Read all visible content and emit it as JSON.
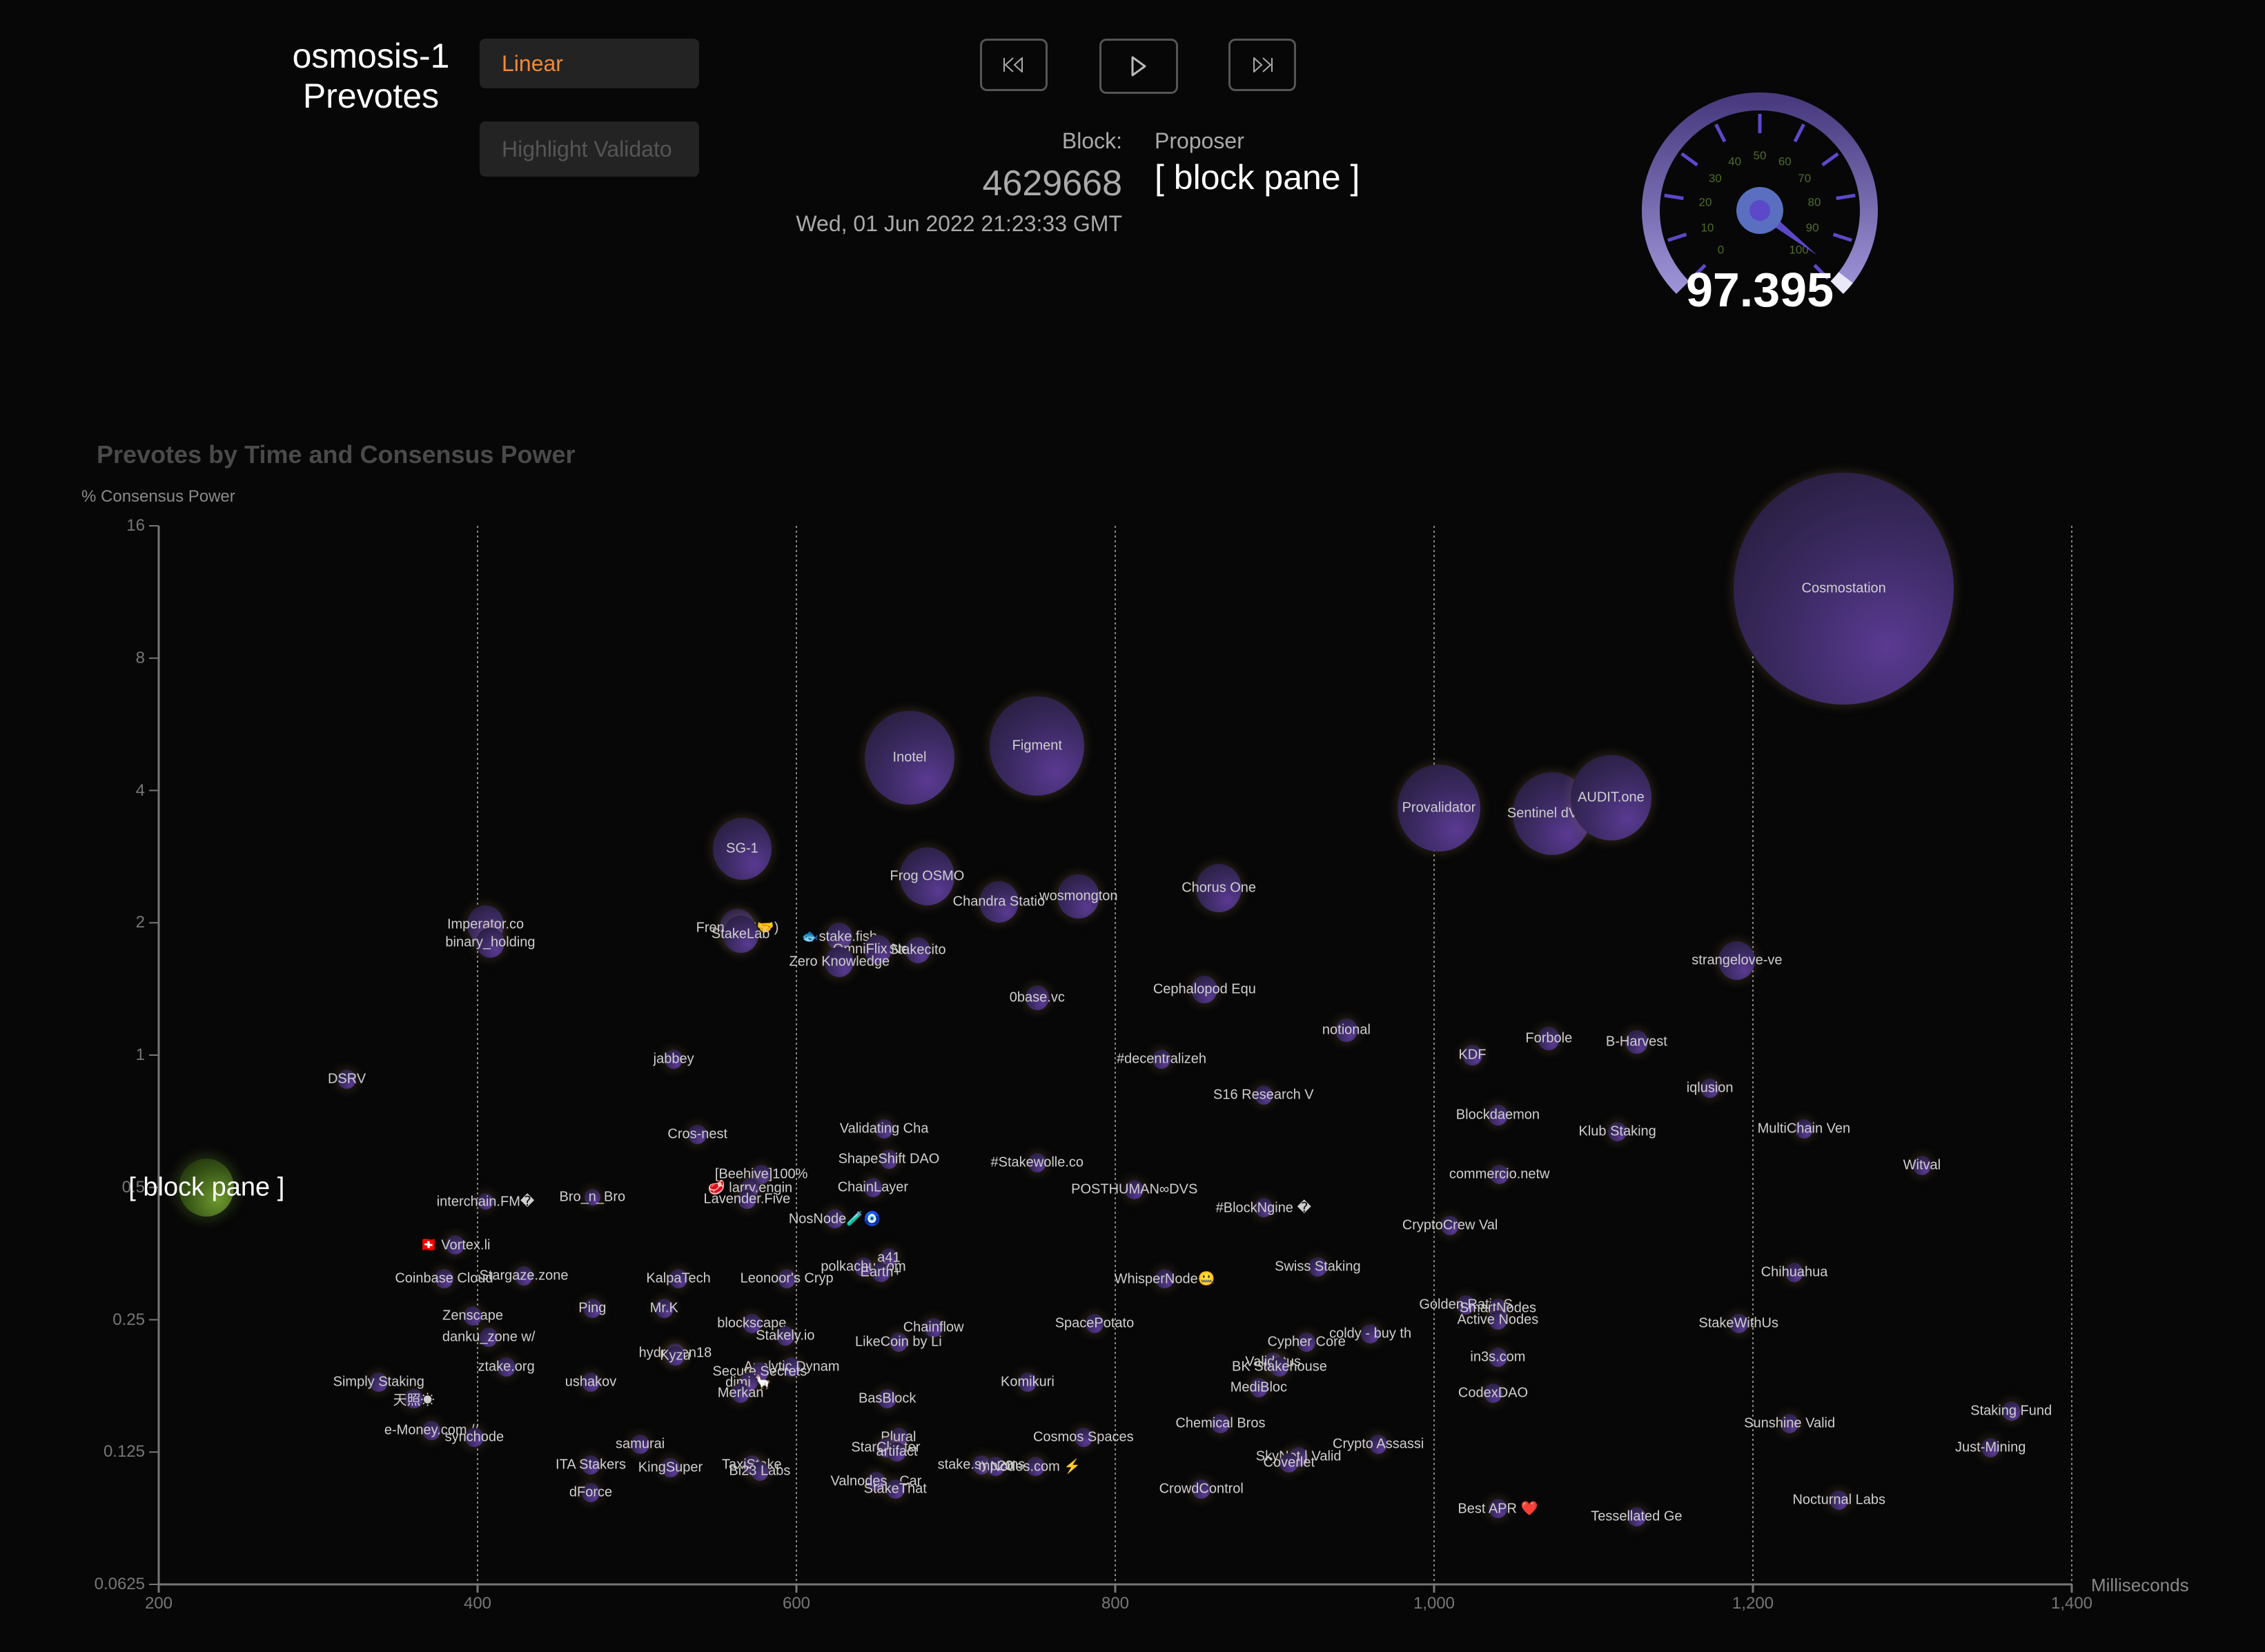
{
  "header": {
    "title_line1": "osmosis-1",
    "title_line2": "Prevotes",
    "scale_button": "Linear",
    "highlight_placeholder": "Highlight Validato",
    "block_label": "Block:",
    "block_number": "4629668",
    "block_time": "Wed, 01 Jun 2022 21:23:33 GMT",
    "proposer_label": "Proposer",
    "proposer_value": "[ block pane ]",
    "media": {
      "prev": "skip-back-icon",
      "play": "play-icon",
      "next": "skip-forward-icon"
    }
  },
  "gauge": {
    "value": "97.395",
    "ticks": [
      "0",
      "10",
      "20",
      "30",
      "40",
      "50",
      "60",
      "70",
      "80",
      "90",
      "100"
    ],
    "colors": {
      "arc": "#6a58b0",
      "tick": "#5b49c9",
      "label": "#4f6b2a",
      "hub": "#5a6fc0",
      "needle": "#5b49c9"
    }
  },
  "chart_data": {
    "type": "scatter",
    "title": "Prevotes by Time and Consensus Power",
    "xlabel": "Milliseconds",
    "ylabel": "% Consensus Power",
    "xlim": [
      200,
      1400
    ],
    "ylim": [
      0.0625,
      16
    ],
    "yscale": "log2",
    "x_ticks": [
      "200",
      "400",
      "600",
      "800",
      "1,000",
      "1,200",
      "1,400"
    ],
    "y_ticks": [
      "16",
      "8",
      "4",
      "2",
      "1",
      "0.5",
      "0.25",
      "0.125",
      "0.0625"
    ],
    "grid": "vertical dotted at x ticks",
    "proposer": {
      "name": "[ block pane ]",
      "x": 230,
      "y": 0.5,
      "r": 42
    },
    "points": [
      {
        "name": "Cosmostation",
        "x": 1257,
        "y": 11.5,
        "r": 168
      },
      {
        "name": "Figment",
        "x": 751,
        "y": 5.05,
        "r": 72
      },
      {
        "name": "Inotel",
        "x": 671,
        "y": 4.75,
        "r": 68
      },
      {
        "name": "Provalidator",
        "x": 1003,
        "y": 3.65,
        "r": 63
      },
      {
        "name": "Sentinel dVPN",
        "x": 1074,
        "y": 3.55,
        "r": 60
      },
      {
        "name": "AUDIT.one",
        "x": 1111,
        "y": 3.85,
        "r": 62
      },
      {
        "name": "SG-1",
        "x": 566,
        "y": 2.95,
        "r": 45
      },
      {
        "name": "Frog OSMO",
        "x": 682,
        "y": 2.55,
        "r": 42
      },
      {
        "name": "Chorus One",
        "x": 865,
        "y": 2.4,
        "r": 35
      },
      {
        "name": "Chandra Statio",
        "x": 727,
        "y": 2.23,
        "r": 30
      },
      {
        "name": "wosmongton",
        "x": 777,
        "y": 2.3,
        "r": 32
      },
      {
        "name": "Imperator.co",
        "x": 405,
        "y": 1.98,
        "r": 28
      },
      {
        "name": "binary_holding",
        "x": 408,
        "y": 1.8,
        "r": 22
      },
      {
        "name": "Frens (🤝🤝)",
        "x": 563,
        "y": 1.95,
        "r": 27
      },
      {
        "name": "StakeLab",
        "x": 565,
        "y": 1.88,
        "r": 27
      },
      {
        "name": "🐟stake.fish",
        "x": 627,
        "y": 1.86,
        "r": 20
      },
      {
        "name": "OmniFlix Netw",
        "x": 651,
        "y": 1.74,
        "r": 21
      },
      {
        "name": "Stakecito",
        "x": 676,
        "y": 1.73,
        "r": 19
      },
      {
        "name": "Zero Knowledge",
        "x": 627,
        "y": 1.63,
        "r": 22
      },
      {
        "name": "strangelove-ve",
        "x": 1190,
        "y": 1.64,
        "r": 28
      },
      {
        "name": "0base.vc",
        "x": 751,
        "y": 1.35,
        "r": 18
      },
      {
        "name": "Cephalopod Equ",
        "x": 856,
        "y": 1.41,
        "r": 20
      },
      {
        "name": "notional",
        "x": 945,
        "y": 1.14,
        "r": 17
      },
      {
        "name": "Forbole",
        "x": 1072,
        "y": 1.09,
        "r": 17
      },
      {
        "name": "B-Harvest",
        "x": 1127,
        "y": 1.07,
        "r": 17
      },
      {
        "name": "KDF",
        "x": 1024,
        "y": 1.0,
        "r": 15
      },
      {
        "name": "#decentralizeh",
        "x": 829,
        "y": 0.98,
        "r": 14
      },
      {
        "name": "jabbey",
        "x": 523,
        "y": 0.98,
        "r": 14
      },
      {
        "name": "DSRV",
        "x": 318,
        "y": 0.88,
        "r": 14
      },
      {
        "name": "iqlusion",
        "x": 1173,
        "y": 0.84,
        "r": 14
      },
      {
        "name": "S16 Research V",
        "x": 893,
        "y": 0.81,
        "r": 14
      },
      {
        "name": "Blockdaemon",
        "x": 1040,
        "y": 0.73,
        "r": 15
      },
      {
        "name": "Klub Staking",
        "x": 1115,
        "y": 0.67,
        "r": 14
      },
      {
        "name": "MultiChain Ven",
        "x": 1232,
        "y": 0.68,
        "r": 14
      },
      {
        "name": "Validating Cha",
        "x": 655,
        "y": 0.68,
        "r": 14
      },
      {
        "name": "Cros-nest",
        "x": 538,
        "y": 0.66,
        "r": 14
      },
      {
        "name": "ShapeShift DAO",
        "x": 658,
        "y": 0.58,
        "r": 14
      },
      {
        "name": "#Stakewolle.co",
        "x": 751,
        "y": 0.57,
        "r": 14
      },
      {
        "name": "Witval",
        "x": 1306,
        "y": 0.56,
        "r": 14
      },
      {
        "name": "commercio.netw",
        "x": 1041,
        "y": 0.535,
        "r": 14
      },
      {
        "name": "[Beehive]100%",
        "x": 578,
        "y": 0.535,
        "r": 14
      },
      {
        "name": "🥩 larry.engin",
        "x": 571,
        "y": 0.5,
        "r": 14
      },
      {
        "name": "ChainLayer",
        "x": 648,
        "y": 0.5,
        "r": 14
      },
      {
        "name": "POSTHUMAN∞DVS",
        "x": 812,
        "y": 0.495,
        "r": 14
      },
      {
        "name": "Lavender.Five",
        "x": 569,
        "y": 0.47,
        "r": 14
      },
      {
        "name": "Bro_n_Bro",
        "x": 472,
        "y": 0.475,
        "r": 12
      },
      {
        "name": "interchain.FM�",
        "x": 405,
        "y": 0.465,
        "r": 12
      },
      {
        "name": "#BlockNgine �",
        "x": 893,
        "y": 0.45,
        "r": 14
      },
      {
        "name": "NosNode🧪🧿",
        "x": 624,
        "y": 0.425,
        "r": 14
      },
      {
        "name": "CryptoCrew Val",
        "x": 1010,
        "y": 0.41,
        "r": 14
      },
      {
        "name": "🇨🇭 Vortex.li",
        "x": 386,
        "y": 0.37,
        "r": 14
      },
      {
        "name": "a41",
        "x": 658,
        "y": 0.345,
        "r": 14
      },
      {
        "name": "polkachu.com",
        "x": 642,
        "y": 0.33,
        "r": 14
      },
      {
        "name": "Earth+",
        "x": 653,
        "y": 0.32,
        "r": 14
      },
      {
        "name": "Swiss Staking",
        "x": 927,
        "y": 0.33,
        "r": 14
      },
      {
        "name": "Chihuahua",
        "x": 1226,
        "y": 0.32,
        "r": 14
      },
      {
        "name": "WhisperNode🤐",
        "x": 831,
        "y": 0.31,
        "r": 14
      },
      {
        "name": "Leonoor's Cryp",
        "x": 594,
        "y": 0.31,
        "r": 14
      },
      {
        "name": "KalpaTech",
        "x": 526,
        "y": 0.31,
        "r": 14
      },
      {
        "name": "Coinbase Cloud",
        "x": 379,
        "y": 0.31,
        "r": 14
      },
      {
        "name": "Stargaze.zone",
        "x": 429,
        "y": 0.315,
        "r": 14
      },
      {
        "name": "Golden Ratio S",
        "x": 1020,
        "y": 0.27,
        "r": 14
      },
      {
        "name": "SmartNodes",
        "x": 1040,
        "y": 0.265,
        "r": 14
      },
      {
        "name": "Active Nodes",
        "x": 1040,
        "y": 0.25,
        "r": 14
      },
      {
        "name": "Ping",
        "x": 472,
        "y": 0.265,
        "r": 14
      },
      {
        "name": "Mr.K",
        "x": 517,
        "y": 0.265,
        "r": 14
      },
      {
        "name": "Zenscape",
        "x": 397,
        "y": 0.255,
        "r": 14
      },
      {
        "name": "blockscape",
        "x": 572,
        "y": 0.245,
        "r": 14
      },
      {
        "name": "SpacePotato",
        "x": 787,
        "y": 0.245,
        "r": 14
      },
      {
        "name": "Chainflow",
        "x": 686,
        "y": 0.24,
        "r": 14
      },
      {
        "name": "StakeWithUs",
        "x": 1191,
        "y": 0.245,
        "r": 14
      },
      {
        "name": "Stakely.io",
        "x": 593,
        "y": 0.23,
        "r": 14
      },
      {
        "name": "danku_zone w/",
        "x": 407,
        "y": 0.228,
        "r": 14
      },
      {
        "name": "coldy - buy th",
        "x": 960,
        "y": 0.232,
        "r": 14
      },
      {
        "name": "LikeCoin by Li",
        "x": 664,
        "y": 0.222,
        "r": 14
      },
      {
        "name": "Cypher Core",
        "x": 920,
        "y": 0.222,
        "r": 14
      },
      {
        "name": "hydrogen18",
        "x": 524,
        "y": 0.21,
        "r": 14
      },
      {
        "name": "Kyzu",
        "x": 524,
        "y": 0.207,
        "r": 14
      },
      {
        "name": "in3s.com",
        "x": 1040,
        "y": 0.205,
        "r": 14
      },
      {
        "name": "Validatus",
        "x": 899,
        "y": 0.2,
        "r": 14
      },
      {
        "name": "BK Stakehouse",
        "x": 903,
        "y": 0.195,
        "r": 14
      },
      {
        "name": "Analytic Dynam",
        "x": 597,
        "y": 0.195,
        "r": 14
      },
      {
        "name": "Secure Secrets",
        "x": 577,
        "y": 0.19,
        "r": 14
      },
      {
        "name": "ztake.org",
        "x": 418,
        "y": 0.195,
        "r": 14
      },
      {
        "name": "ushakov",
        "x": 471,
        "y": 0.18,
        "r": 14
      },
      {
        "name": "Simply Staking",
        "x": 338,
        "y": 0.18,
        "r": 14
      },
      {
        "name": "dimi 🦙",
        "x": 570,
        "y": 0.18,
        "r": 14
      },
      {
        "name": "Komikuri",
        "x": 745,
        "y": 0.18,
        "r": 14
      },
      {
        "name": "MediBloc",
        "x": 890,
        "y": 0.175,
        "r": 14
      },
      {
        "name": "Merkan",
        "x": 565,
        "y": 0.17,
        "r": 14
      },
      {
        "name": "CodexDAO",
        "x": 1037,
        "y": 0.17,
        "r": 14
      },
      {
        "name": "天照☀",
        "x": 360,
        "y": 0.165,
        "r": 14
      },
      {
        "name": "BasBlock",
        "x": 657,
        "y": 0.165,
        "r": 14
      },
      {
        "name": "Staking Fund",
        "x": 1362,
        "y": 0.155,
        "r": 14
      },
      {
        "name": "Sunshine Valid",
        "x": 1223,
        "y": 0.145,
        "r": 14
      },
      {
        "name": "Chemical Bros",
        "x": 866,
        "y": 0.145,
        "r": 14
      },
      {
        "name": "e-Money.com //",
        "x": 371,
        "y": 0.14,
        "r": 14
      },
      {
        "name": "synchode",
        "x": 398,
        "y": 0.135,
        "r": 14
      },
      {
        "name": "Cosmos Spaces",
        "x": 780,
        "y": 0.135,
        "r": 14
      },
      {
        "name": "Plural",
        "x": 664,
        "y": 0.135,
        "r": 14
      },
      {
        "name": "samurai",
        "x": 502,
        "y": 0.13,
        "r": 14
      },
      {
        "name": "Crypto Assassi",
        "x": 965,
        "y": 0.13,
        "r": 14
      },
      {
        "name": "Just-Mining",
        "x": 1349,
        "y": 0.128,
        "r": 14
      },
      {
        "name": "StarCluster",
        "x": 656,
        "y": 0.128,
        "r": 14
      },
      {
        "name": "artifact",
        "x": 663,
        "y": 0.125,
        "r": 14
      },
      {
        "name": "SkyNet | Valid",
        "x": 915,
        "y": 0.122,
        "r": 14
      },
      {
        "name": "Coverlet",
        "x": 909,
        "y": 0.118,
        "r": 14
      },
      {
        "name": "ITA Stakers",
        "x": 471,
        "y": 0.117,
        "r": 14
      },
      {
        "name": "KingSuper",
        "x": 521,
        "y": 0.115,
        "r": 14
      },
      {
        "name": "TaxiStake",
        "x": 572,
        "y": 0.117,
        "r": 14
      },
      {
        "name": "Bi23 Labs",
        "x": 577,
        "y": 0.113,
        "r": 14
      },
      {
        "name": "stake.systems",
        "x": 716,
        "y": 0.117,
        "r": 14
      },
      {
        "name": "mp20",
        "x": 725,
        "y": 0.116,
        "r": 14
      },
      {
        "name": "Nodes.com ⚡",
        "x": 750,
        "y": 0.116,
        "r": 14
      },
      {
        "name": "Valnodes - Car",
        "x": 650,
        "y": 0.107,
        "r": 14
      },
      {
        "name": "StakeThat",
        "x": 662,
        "y": 0.103,
        "r": 14
      },
      {
        "name": "CrowdControl",
        "x": 854,
        "y": 0.103,
        "r": 14
      },
      {
        "name": "dForce",
        "x": 471,
        "y": 0.101,
        "r": 14
      },
      {
        "name": "Nocturnal Labs",
        "x": 1254,
        "y": 0.097,
        "r": 14
      },
      {
        "name": "Best APR ❤️",
        "x": 1040,
        "y": 0.093,
        "r": 14
      },
      {
        "name": "Tessellated Ge",
        "x": 1127,
        "y": 0.089,
        "r": 14
      }
    ]
  }
}
